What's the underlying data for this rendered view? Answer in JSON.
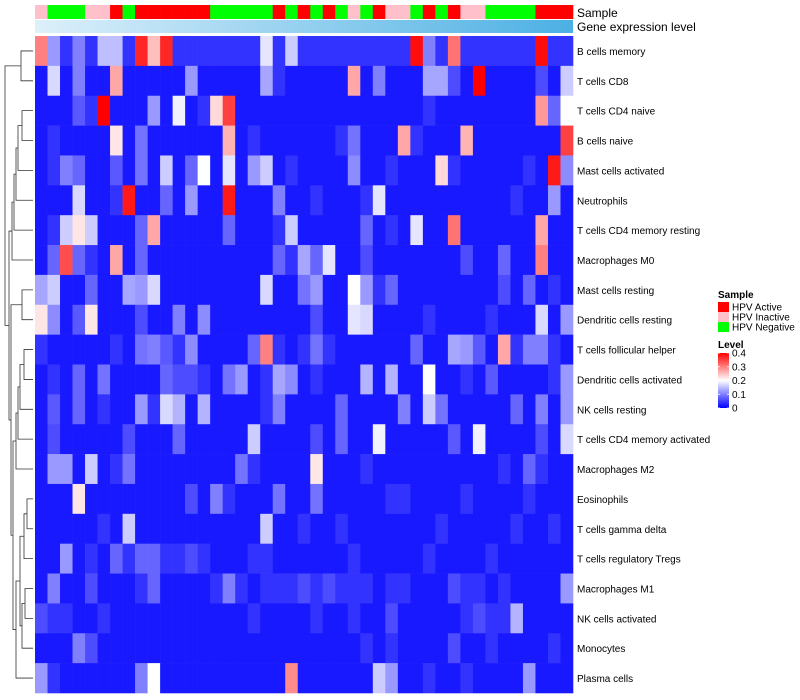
{
  "chart_data": {
    "type": "heatmap",
    "annotation_titles": {
      "sample": "Sample",
      "gene_expression": "Gene expression level"
    },
    "rows": [
      "B cells memory",
      "T cells CD8",
      "T cells CD4 naive",
      "B cells naive",
      "Mast cells activated",
      "Neutrophils",
      "T cells CD4 memory resting",
      "Macrophages M0",
      "Mast cells resting",
      "Dendritic cells resting",
      "T cells follicular helper",
      "Dendritic cells activated",
      "NK cells resting",
      "T cells CD4 memory activated",
      "Macrophages M2",
      "Eosinophils",
      "T cells gamma delta",
      "T cells regulatory  Tregs",
      "Macrophages M1",
      "NK cells activated",
      "Monocytes",
      "Plasma cells"
    ],
    "sample_groups": [
      "Inactive",
      "Negative",
      "Negative",
      "Negative",
      "Inactive",
      "Inactive",
      "Active",
      "Negative",
      "Active",
      "Active",
      "Active",
      "Active",
      "Active",
      "Active",
      "Negative",
      "Negative",
      "Negative",
      "Negative",
      "Negative",
      "Active",
      "Negative",
      "Active",
      "Negative",
      "Active",
      "Negative",
      "Inactive",
      "Negative",
      "Active",
      "Inactive",
      "Inactive",
      "Negative",
      "Active",
      "Negative",
      "Active",
      "Inactive",
      "Inactive",
      "Negative",
      "Negative",
      "Negative",
      "Negative",
      "Active",
      "Active",
      "Active"
    ],
    "gene_expression": {
      "start_color": "#ddf0fa",
      "end_color": "#4cb0e4"
    },
    "color_scale": {
      "min": 0,
      "max": 0.4,
      "low": "#0000ff",
      "mid": "#ffffff",
      "mid_value": 0.2,
      "high": "#ff0000"
    },
    "values": [
      [
        0.3,
        0.12,
        0.04,
        0.1,
        0.04,
        0.15,
        0.15,
        0.04,
        0.37,
        0.25,
        0.37,
        0.04,
        0.04,
        0.04,
        0.04,
        0.04,
        0.04,
        0.04,
        0.18,
        0.04,
        0.16,
        0.04,
        0.04,
        0.04,
        0.04,
        0.04,
        0.04,
        0.04,
        0.04,
        0.04,
        0.39,
        0.1,
        0.04,
        0.31,
        0.04,
        0.04,
        0.04,
        0.04,
        0.04,
        0.04,
        0.39,
        0.04,
        0.04
      ],
      [
        0.02,
        0.17,
        0.02,
        0.1,
        0.02,
        0.02,
        0.27,
        0.02,
        0.02,
        0.02,
        0.02,
        0.02,
        0.12,
        0.02,
        0.02,
        0.02,
        0.02,
        0.02,
        0.13,
        0.04,
        0.02,
        0.02,
        0.02,
        0.02,
        0.02,
        0.27,
        0.02,
        0.1,
        0.02,
        0.02,
        0.02,
        0.13,
        0.13,
        0.06,
        0.02,
        0.4,
        0.02,
        0.02,
        0.02,
        0.02,
        0.06,
        0.02,
        0.16
      ],
      [
        0.02,
        0.02,
        0.02,
        0.07,
        0.04,
        0.4,
        0.02,
        0.02,
        0.02,
        0.12,
        0.02,
        0.19,
        0.02,
        0.04,
        0.23,
        0.35,
        0.02,
        0.02,
        0.02,
        0.02,
        0.02,
        0.02,
        0.02,
        0.02,
        0.02,
        0.02,
        0.02,
        0.02,
        0.02,
        0.02,
        0.02,
        0.04,
        0.02,
        0.02,
        0.02,
        0.02,
        0.02,
        0.02,
        0.02,
        0.02,
        0.28,
        0.08,
        0.2
      ],
      [
        0.02,
        0.04,
        0.02,
        0.02,
        0.02,
        0.02,
        0.22,
        0.02,
        0.09,
        0.02,
        0.02,
        0.02,
        0.02,
        0.02,
        0.02,
        0.26,
        0.02,
        0.04,
        0.02,
        0.02,
        0.02,
        0.02,
        0.02,
        0.02,
        0.04,
        0.09,
        0.02,
        0.02,
        0.02,
        0.27,
        0.04,
        0.02,
        0.02,
        0.02,
        0.26,
        0.02,
        0.02,
        0.02,
        0.02,
        0.02,
        0.02,
        0.02,
        0.35
      ],
      [
        0.02,
        0.04,
        0.1,
        0.08,
        0.02,
        0.02,
        0.07,
        0.02,
        0.09,
        0.02,
        0.16,
        0.02,
        0.08,
        0.2,
        0.02,
        0.18,
        0.02,
        0.12,
        0.16,
        0.02,
        0.04,
        0.02,
        0.02,
        0.02,
        0.02,
        0.11,
        0.02,
        0.02,
        0.04,
        0.02,
        0.02,
        0.02,
        0.23,
        0.04,
        0.02,
        0.02,
        0.02,
        0.02,
        0.02,
        0.04,
        0.02,
        0.38,
        0.11
      ],
      [
        0.02,
        0.02,
        0.02,
        0.17,
        0.02,
        0.02,
        0.04,
        0.38,
        0.02,
        0.02,
        0.08,
        0.02,
        0.12,
        0.02,
        0.02,
        0.38,
        0.02,
        0.02,
        0.02,
        0.1,
        0.02,
        0.02,
        0.04,
        0.02,
        0.02,
        0.02,
        0.04,
        0.18,
        0.02,
        0.02,
        0.02,
        0.02,
        0.02,
        0.02,
        0.02,
        0.02,
        0.02,
        0.02,
        0.04,
        0.02,
        0.02,
        0.12,
        0.02
      ],
      [
        0.02,
        0.04,
        0.16,
        0.22,
        0.16,
        0.02,
        0.02,
        0.02,
        0.08,
        0.27,
        0.02,
        0.02,
        0.02,
        0.02,
        0.02,
        0.08,
        0.02,
        0.02,
        0.02,
        0.04,
        0.16,
        0.02,
        0.02,
        0.02,
        0.02,
        0.02,
        0.08,
        0.02,
        0.04,
        0.02,
        0.18,
        0.02,
        0.02,
        0.31,
        0.02,
        0.02,
        0.02,
        0.02,
        0.02,
        0.02,
        0.27,
        0.02,
        0.02
      ],
      [
        0.02,
        0.08,
        0.34,
        0.08,
        0.04,
        0.02,
        0.27,
        0.02,
        0.08,
        0.02,
        0.02,
        0.02,
        0.02,
        0.02,
        0.02,
        0.02,
        0.02,
        0.02,
        0.02,
        0.08,
        0.04,
        0.13,
        0.08,
        0.18,
        0.02,
        0.02,
        0.06,
        0.02,
        0.02,
        0.02,
        0.02,
        0.02,
        0.02,
        0.02,
        0.06,
        0.02,
        0.02,
        0.08,
        0.02,
        0.02,
        0.3,
        0.02,
        0.02
      ],
      [
        0.13,
        0.16,
        0.02,
        0.02,
        0.08,
        0.02,
        0.02,
        0.13,
        0.12,
        0.17,
        0.02,
        0.02,
        0.02,
        0.02,
        0.02,
        0.02,
        0.02,
        0.02,
        0.17,
        0.02,
        0.02,
        0.09,
        0.12,
        0.02,
        0.02,
        0.2,
        0.12,
        0.04,
        0.08,
        0.02,
        0.02,
        0.02,
        0.02,
        0.02,
        0.02,
        0.02,
        0.02,
        0.06,
        0.02,
        0.08,
        0.02,
        0.04,
        0.02
      ],
      [
        0.22,
        0.11,
        0.02,
        0.07,
        0.22,
        0.02,
        0.02,
        0.02,
        0.06,
        0.02,
        0.02,
        0.1,
        0.02,
        0.11,
        0.02,
        0.02,
        0.02,
        0.02,
        0.02,
        0.02,
        0.02,
        0.02,
        0.06,
        0.02,
        0.02,
        0.18,
        0.17,
        0.02,
        0.02,
        0.02,
        0.02,
        0.04,
        0.02,
        0.02,
        0.02,
        0.02,
        0.04,
        0.02,
        0.02,
        0.02,
        0.17,
        0.02,
        0.12
      ],
      [
        0.04,
        0.02,
        0.02,
        0.02,
        0.02,
        0.02,
        0.04,
        0.02,
        0.09,
        0.1,
        0.07,
        0.04,
        0.11,
        0.02,
        0.02,
        0.02,
        0.02,
        0.08,
        0.3,
        0.04,
        0.02,
        0.04,
        0.09,
        0.04,
        0.02,
        0.02,
        0.02,
        0.02,
        0.02,
        0.02,
        0.08,
        0.02,
        0.02,
        0.13,
        0.12,
        0.07,
        0.02,
        0.27,
        0.04,
        0.1,
        0.1,
        0.04,
        0.02
      ],
      [
        0.02,
        0.04,
        0.02,
        0.08,
        0.02,
        0.09,
        0.02,
        0.02,
        0.02,
        0.02,
        0.08,
        0.06,
        0.06,
        0.04,
        0.02,
        0.09,
        0.12,
        0.02,
        0.04,
        0.13,
        0.11,
        0.02,
        0.04,
        0.02,
        0.02,
        0.02,
        0.14,
        0.02,
        0.14,
        0.02,
        0.02,
        0.2,
        0.02,
        0.02,
        0.04,
        0.02,
        0.07,
        0.02,
        0.02,
        0.02,
        0.02,
        0.04,
        0.12
      ],
      [
        0.02,
        0.07,
        0.02,
        0.08,
        0.02,
        0.04,
        0.02,
        0.02,
        0.12,
        0.04,
        0.17,
        0.14,
        0.02,
        0.14,
        0.02,
        0.02,
        0.02,
        0.02,
        0.04,
        0.1,
        0.02,
        0.02,
        0.02,
        0.02,
        0.08,
        0.02,
        0.02,
        0.02,
        0.02,
        0.1,
        0.02,
        0.16,
        0.09,
        0.02,
        0.02,
        0.02,
        0.02,
        0.02,
        0.08,
        0.02,
        0.1,
        0.02,
        0.12
      ],
      [
        0.02,
        0.06,
        0.02,
        0.02,
        0.02,
        0.02,
        0.02,
        0.06,
        0.02,
        0.02,
        0.02,
        0.08,
        0.02,
        0.02,
        0.02,
        0.02,
        0.02,
        0.16,
        0.02,
        0.02,
        0.02,
        0.02,
        0.06,
        0.02,
        0.08,
        0.02,
        0.02,
        0.19,
        0.02,
        0.02,
        0.02,
        0.02,
        0.02,
        0.07,
        0.02,
        0.19,
        0.02,
        0.02,
        0.02,
        0.02,
        0.06,
        0.02,
        0.17
      ],
      [
        0.02,
        0.12,
        0.12,
        0.02,
        0.16,
        0.02,
        0.04,
        0.09,
        0.02,
        0.02,
        0.02,
        0.02,
        0.02,
        0.02,
        0.02,
        0.02,
        0.09,
        0.04,
        0.02,
        0.02,
        0.02,
        0.02,
        0.22,
        0.02,
        0.02,
        0.02,
        0.04,
        0.02,
        0.02,
        0.02,
        0.02,
        0.02,
        0.02,
        0.02,
        0.02,
        0.02,
        0.02,
        0.04,
        0.02,
        0.08,
        0.04,
        0.02,
        0.02
      ],
      [
        0.02,
        0.02,
        0.02,
        0.22,
        0.02,
        0.02,
        0.02,
        0.02,
        0.02,
        0.02,
        0.02,
        0.02,
        0.06,
        0.02,
        0.1,
        0.04,
        0.02,
        0.02,
        0.02,
        0.09,
        0.02,
        0.02,
        0.09,
        0.02,
        0.02,
        0.02,
        0.02,
        0.02,
        0.04,
        0.04,
        0.02,
        0.02,
        0.02,
        0.02,
        0.04,
        0.02,
        0.02,
        0.02,
        0.02,
        0.04,
        0.02,
        0.02,
        0.02
      ],
      [
        0.02,
        0.02,
        0.02,
        0.02,
        0.02,
        0.04,
        0.02,
        0.16,
        0.02,
        0.02,
        0.02,
        0.02,
        0.02,
        0.02,
        0.02,
        0.02,
        0.02,
        0.02,
        0.16,
        0.02,
        0.02,
        0.04,
        0.02,
        0.02,
        0.04,
        0.02,
        0.02,
        0.02,
        0.02,
        0.02,
        0.02,
        0.02,
        0.04,
        0.02,
        0.02,
        0.02,
        0.02,
        0.02,
        0.04,
        0.02,
        0.02,
        0.04,
        0.02
      ],
      [
        0.02,
        0.02,
        0.12,
        0.02,
        0.04,
        0.02,
        0.08,
        0.04,
        0.08,
        0.08,
        0.04,
        0.04,
        0.06,
        0.04,
        0.02,
        0.02,
        0.02,
        0.04,
        0.04,
        0.02,
        0.02,
        0.02,
        0.02,
        0.02,
        0.02,
        0.04,
        0.02,
        0.02,
        0.02,
        0.02,
        0.02,
        0.04,
        0.02,
        0.02,
        0.02,
        0.02,
        0.04,
        0.02,
        0.02,
        0.02,
        0.02,
        0.02,
        0.02
      ],
      [
        0.02,
        0.1,
        0.02,
        0.02,
        0.06,
        0.02,
        0.02,
        0.02,
        0.04,
        0.08,
        0.02,
        0.02,
        0.02,
        0.02,
        0.04,
        0.1,
        0.04,
        0.02,
        0.04,
        0.04,
        0.04,
        0.06,
        0.04,
        0.06,
        0.04,
        0.04,
        0.04,
        0.02,
        0.04,
        0.04,
        0.02,
        0.02,
        0.02,
        0.06,
        0.04,
        0.04,
        0.02,
        0.04,
        0.02,
        0.02,
        0.02,
        0.02,
        0.12
      ],
      [
        0.06,
        0.04,
        0.04,
        0.02,
        0.02,
        0.04,
        0.02,
        0.02,
        0.02,
        0.02,
        0.02,
        0.02,
        0.02,
        0.02,
        0.02,
        0.02,
        0.02,
        0.04,
        0.02,
        0.02,
        0.02,
        0.02,
        0.04,
        0.02,
        0.02,
        0.04,
        0.02,
        0.02,
        0.06,
        0.02,
        0.02,
        0.02,
        0.02,
        0.02,
        0.04,
        0.06,
        0.04,
        0.04,
        0.14,
        0.02,
        0.02,
        0.02,
        0.02
      ],
      [
        0.02,
        0.02,
        0.02,
        0.1,
        0.06,
        0.02,
        0.02,
        0.02,
        0.02,
        0.02,
        0.02,
        0.02,
        0.02,
        0.02,
        0.02,
        0.02,
        0.02,
        0.02,
        0.02,
        0.02,
        0.02,
        0.02,
        0.02,
        0.02,
        0.02,
        0.02,
        0.04,
        0.02,
        0.04,
        0.02,
        0.02,
        0.02,
        0.02,
        0.06,
        0.02,
        0.02,
        0.04,
        0.02,
        0.02,
        0.02,
        0.02,
        0.04,
        0.02
      ],
      [
        0.12,
        0.04,
        0.02,
        0.02,
        0.02,
        0.02,
        0.02,
        0.02,
        0.1,
        0.2,
        0.02,
        0.02,
        0.02,
        0.02,
        0.02,
        0.02,
        0.02,
        0.02,
        0.02,
        0.02,
        0.29,
        0.02,
        0.02,
        0.02,
        0.02,
        0.02,
        0.02,
        0.16,
        0.12,
        0.02,
        0.02,
        0.04,
        0.02,
        0.02,
        0.04,
        0.02,
        0.02,
        0.02,
        0.02,
        0.12,
        0.02,
        0.02,
        0.02
      ]
    ],
    "legend": {
      "sample_title": "Sample",
      "sample_entries": [
        {
          "key": "Active",
          "label": "HPV Active",
          "color": "#ff0000"
        },
        {
          "key": "Inactive",
          "label": "HPV Inactive",
          "color": "#ffc0cb"
        },
        {
          "key": "Negative",
          "label": "HPV Negative",
          "color": "#00ff00"
        }
      ],
      "level_title": "Level",
      "level_ticks": [
        {
          "value": 0.4,
          "label": "0.4"
        },
        {
          "value": 0.3,
          "label": "0.3"
        },
        {
          "value": 0.2,
          "label": "0.2"
        },
        {
          "value": 0.1,
          "label": "0.1"
        },
        {
          "value": 0,
          "label": "0"
        }
      ]
    }
  }
}
